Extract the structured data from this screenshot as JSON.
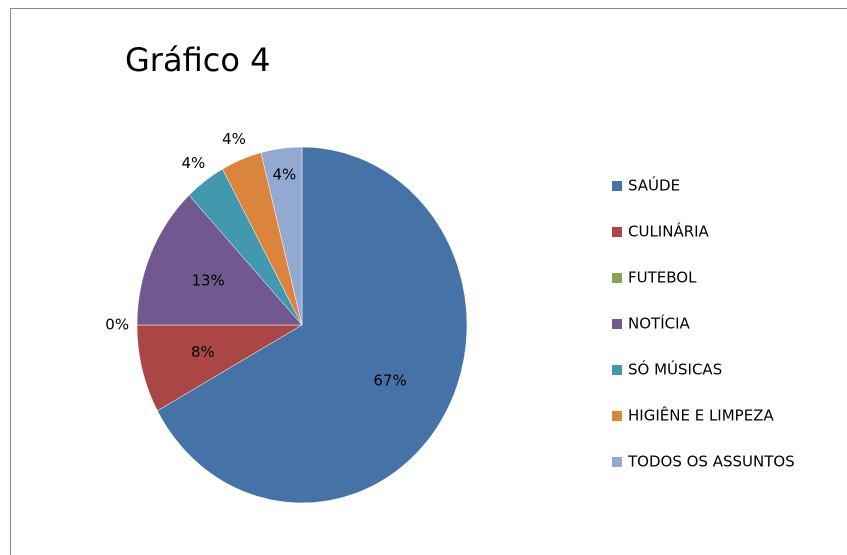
{
  "chart_data": {
    "type": "pie",
    "title": "Gráfico 4",
    "categories": [
      "SAÚDE",
      "CULINÁRIA",
      "FUTEBOL",
      "NOTÍCIA",
      "SÓ MÚSICAS",
      "HIGIÊNE E LIMPEZA",
      "TODOS OS ASSUNTOS"
    ],
    "values": [
      67,
      8,
      0,
      13,
      4,
      4,
      4
    ],
    "value_labels": [
      "67%",
      "8%",
      "0%",
      "13%",
      "4%",
      "4%",
      "4%"
    ],
    "colors": [
      "#4572A7",
      "#AA4643",
      "#89A54E",
      "#71588F",
      "#4198AF",
      "#DB843D",
      "#93A9CF"
    ],
    "legend": "right"
  }
}
